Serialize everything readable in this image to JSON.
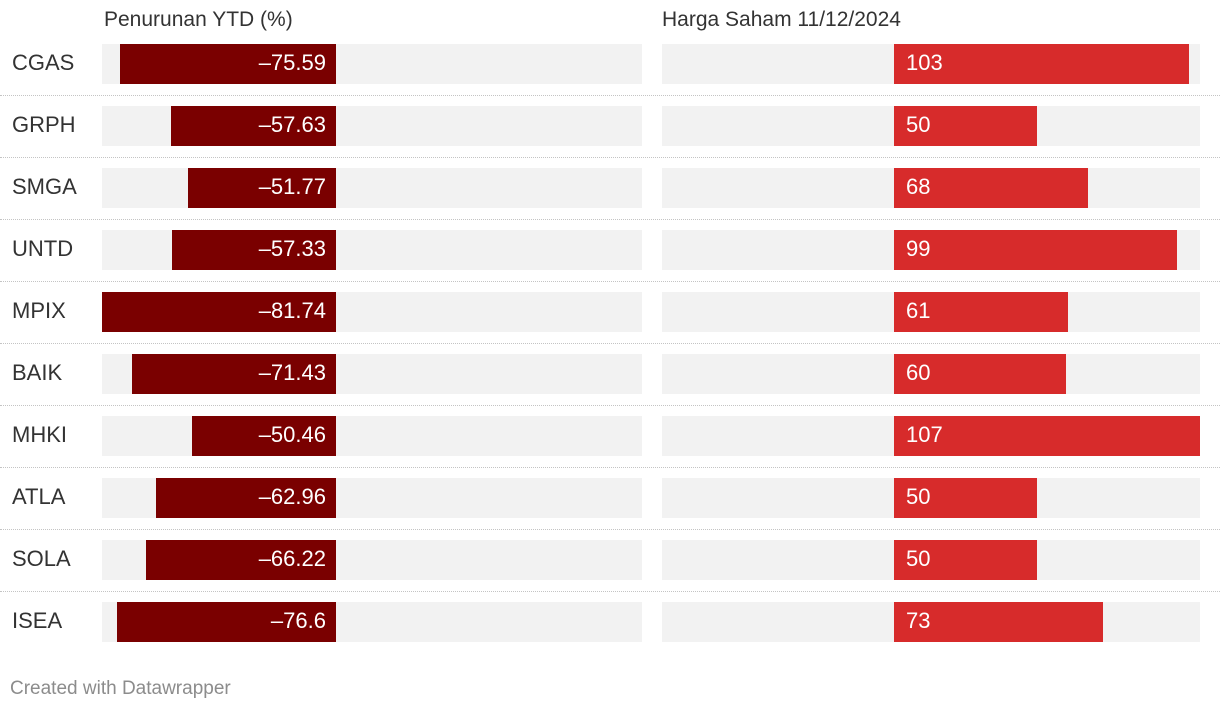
{
  "colors": {
    "negative_bar": "#7a0000",
    "positive_bar": "#d72b2b",
    "track": "#f2f2f2"
  },
  "chart_data": {
    "type": "bar",
    "orientation": "horizontal",
    "categories": [
      "CGAS",
      "GRPH",
      "SMGA",
      "UNTD",
      "MPIX",
      "BAIK",
      "MHKI",
      "ATLA",
      "SOLA",
      "ISEA"
    ],
    "series": [
      {
        "name": "Penurunan YTD (%)",
        "values": [
          -75.59,
          -57.63,
          -51.77,
          -57.33,
          -81.74,
          -71.43,
          -50.46,
          -62.96,
          -66.22,
          -76.6
        ],
        "labels": [
          "–75.59",
          "–57.63",
          "–51.77",
          "–57.33",
          "–81.74",
          "–71.43",
          "–50.46",
          "–62.96",
          "–66.22",
          "–76.6"
        ],
        "range": [
          -81.74,
          0
        ]
      },
      {
        "name": "Harga Saham 11/12/2024",
        "values": [
          103,
          50,
          68,
          99,
          61,
          60,
          107,
          50,
          50,
          73
        ],
        "labels": [
          "103",
          "50",
          "68",
          "99",
          "61",
          "60",
          "107",
          "50",
          "50",
          "73"
        ],
        "range": [
          0,
          107
        ]
      }
    ],
    "legend": "none",
    "grid": false
  },
  "footer": {
    "credit": "Created with Datawrapper"
  }
}
